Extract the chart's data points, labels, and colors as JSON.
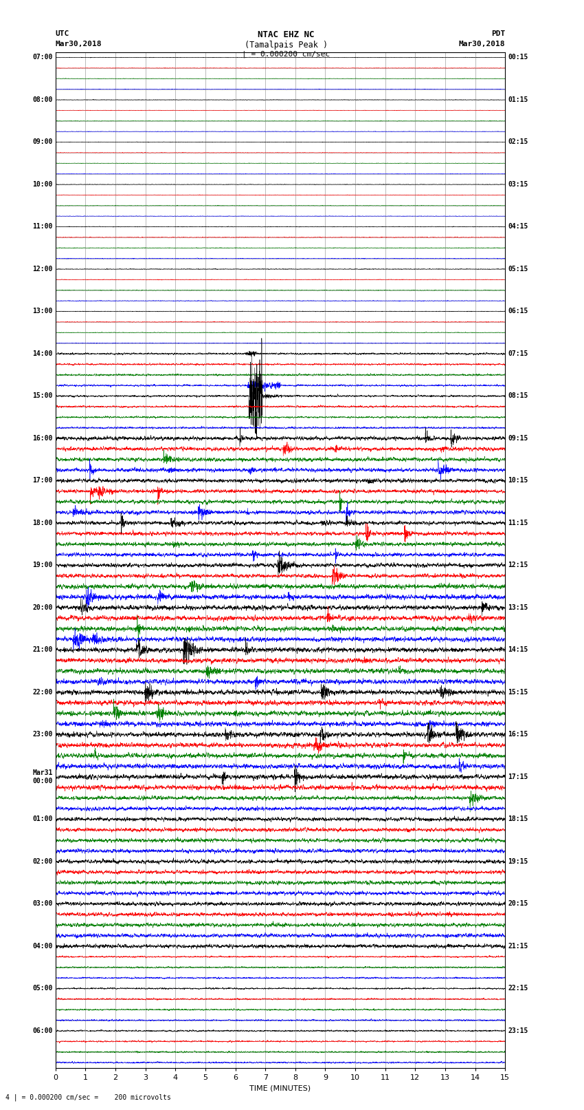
{
  "title_line1": "NTAC EHZ NC",
  "title_line2": "(Tamalpais Peak )",
  "scale_label": "| = 0.000200 cm/sec",
  "left_label_line1": "UTC",
  "left_label_line2": "Mar30,2018",
  "right_label_line1": "PDT",
  "right_label_line2": "Mar30,2018",
  "bottom_note": "4 | = 0.000200 cm/sec =    200 microvolts",
  "xlabel": "TIME (MINUTES)",
  "xlim": [
    0,
    15
  ],
  "xticks": [
    0,
    1,
    2,
    3,
    4,
    5,
    6,
    7,
    8,
    9,
    10,
    11,
    12,
    13,
    14,
    15
  ],
  "num_traces": 96,
  "trace_colors_cycle": [
    "black",
    "red",
    "green",
    "blue"
  ],
  "left_times": [
    "07:00",
    "",
    "",
    "",
    "08:00",
    "",
    "",
    "",
    "09:00",
    "",
    "",
    "",
    "10:00",
    "",
    "",
    "",
    "11:00",
    "",
    "",
    "",
    "12:00",
    "",
    "",
    "",
    "13:00",
    "",
    "",
    "",
    "14:00",
    "",
    "",
    "",
    "15:00",
    "",
    "",
    "",
    "16:00",
    "",
    "",
    "",
    "17:00",
    "",
    "",
    "",
    "18:00",
    "",
    "",
    "",
    "19:00",
    "",
    "",
    "",
    "20:00",
    "",
    "",
    "",
    "21:00",
    "",
    "",
    "",
    "22:00",
    "",
    "",
    "",
    "23:00",
    "",
    "",
    "",
    "Mar31\n00:00",
    "",
    "",
    "",
    "01:00",
    "",
    "",
    "",
    "02:00",
    "",
    "",
    "",
    "03:00",
    "",
    "",
    "",
    "04:00",
    "",
    "",
    "",
    "05:00",
    "",
    "",
    "",
    "06:00",
    "",
    "",
    ""
  ],
  "right_times": [
    "00:15",
    "",
    "",
    "",
    "01:15",
    "",
    "",
    "",
    "02:15",
    "",
    "",
    "",
    "03:15",
    "",
    "",
    "",
    "04:15",
    "",
    "",
    "",
    "05:15",
    "",
    "",
    "",
    "06:15",
    "",
    "",
    "",
    "07:15",
    "",
    "",
    "",
    "08:15",
    "",
    "",
    "",
    "09:15",
    "",
    "",
    "",
    "10:15",
    "",
    "",
    "",
    "11:15",
    "",
    "",
    "",
    "12:15",
    "",
    "",
    "",
    "13:15",
    "",
    "",
    "",
    "14:15",
    "",
    "",
    "",
    "15:15",
    "",
    "",
    "",
    "16:15",
    "",
    "",
    "",
    "17:15",
    "",
    "",
    "",
    "18:15",
    "",
    "",
    "",
    "19:15",
    "",
    "",
    "",
    "20:15",
    "",
    "",
    "",
    "21:15",
    "",
    "",
    "",
    "22:15",
    "",
    "",
    "",
    "23:15",
    "",
    "",
    ""
  ],
  "bg_color": "#ffffff",
  "grid_color": "#888888",
  "trace_linewidth": 0.4
}
